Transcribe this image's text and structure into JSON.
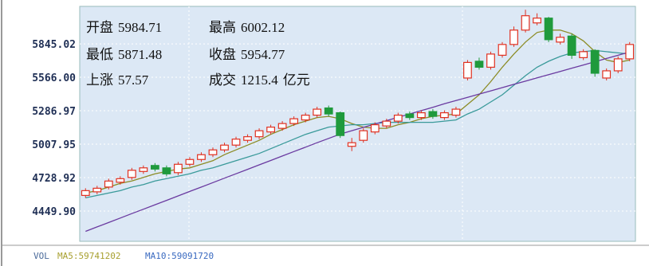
{
  "chart_data": {
    "type": "candlestick",
    "ylim": [
      4197,
      6158
    ],
    "yticks": [
      {
        "value": 4449.9,
        "label": "4449.90"
      },
      4728.92,
      5007.95,
      5286.97,
      {
        "value": 5566,
        "label": "5566.00"
      },
      5845.02
    ],
    "grid": true,
    "up_color": "#e03020",
    "down_color": "#1f9a3c",
    "candles": {
      "open": [
        4580,
        4610,
        4650,
        4690,
        4730,
        4780,
        4830,
        4810,
        4770,
        4840,
        4880,
        4920,
        4960,
        5000,
        5040,
        5070,
        5110,
        5140,
        5180,
        5210,
        5250,
        5310,
        5270,
        4990,
        5040,
        5110,
        5160,
        5200,
        5260,
        5230,
        5280,
        5230,
        5250,
        5560,
        5700,
        5650,
        5750,
        5840,
        5960,
        6020,
        6060,
        5860,
        5910,
        5730,
        5790,
        5560,
        5620,
        5720
      ],
      "high": [
        4640,
        4660,
        4720,
        4740,
        4810,
        4830,
        4850,
        4830,
        4860,
        4900,
        4940,
        4980,
        5020,
        5070,
        5090,
        5140,
        5170,
        5200,
        5240,
        5270,
        5320,
        5330,
        5280,
        5060,
        5140,
        5190,
        5220,
        5270,
        5280,
        5290,
        5300,
        5290,
        5320,
        5710,
        5730,
        5780,
        5860,
        5990,
        6130,
        6100,
        6070,
        5930,
        5930,
        5800,
        5800,
        5640,
        5740,
        5860
      ],
      "low": [
        4560,
        4590,
        4630,
        4670,
        4710,
        4760,
        4780,
        4740,
        4750,
        4820,
        4860,
        4900,
        4940,
        4980,
        5020,
        5050,
        5090,
        5120,
        5160,
        5190,
        5230,
        5240,
        5060,
        4950,
        5020,
        5090,
        5140,
        5180,
        5210,
        5210,
        5220,
        5210,
        5230,
        5540,
        5630,
        5630,
        5730,
        5820,
        5940,
        6000,
        5860,
        5840,
        5720,
        5710,
        5570,
        5540,
        5600,
        5700
      ],
      "close": [
        4620,
        4640,
        4700,
        4720,
        4790,
        4810,
        4800,
        4760,
        4840,
        4880,
        4920,
        4960,
        5000,
        5050,
        5070,
        5120,
        5150,
        5180,
        5220,
        5250,
        5300,
        5260,
        5080,
        5020,
        5120,
        5170,
        5200,
        5250,
        5230,
        5270,
        5240,
        5270,
        5300,
        5690,
        5650,
        5760,
        5840,
        5960,
        6080,
        6060,
        5880,
        5900,
        5750,
        5780,
        5600,
        5620,
        5720,
        5840
      ]
    },
    "series": [
      {
        "color": "#8c8c26",
        "values": [
          4600,
          4620,
          4650,
          4680,
          4700,
          4730,
          4760,
          4780,
          4800,
          4810,
          4840,
          4870,
          4920,
          4960,
          5000,
          5040,
          5090,
          5130,
          5170,
          5200,
          5230,
          5240,
          5220,
          5180,
          5150,
          5140,
          5140,
          5170,
          5190,
          5220,
          5240,
          5250,
          5260,
          5340,
          5420,
          5530,
          5650,
          5760,
          5860,
          5940,
          5960,
          5960,
          5930,
          5870,
          5780,
          5710,
          5690,
          5710
        ]
      },
      {
        "color": "#3a9a9a",
        "values": [
          4560,
          4580,
          4600,
          4620,
          4650,
          4670,
          4700,
          4720,
          4740,
          4760,
          4790,
          4810,
          4840,
          4870,
          4900,
          4930,
          4970,
          5010,
          5050,
          5090,
          5120,
          5150,
          5160,
          5170,
          5170,
          5180,
          5190,
          5190,
          5190,
          5190,
          5190,
          5200,
          5210,
          5260,
          5300,
          5360,
          5420,
          5500,
          5580,
          5650,
          5700,
          5740,
          5770,
          5780,
          5790,
          5780,
          5770,
          5760
        ]
      },
      {
        "color": "#6a3aa0",
        "values": [
          4280,
          4317,
          4354,
          4391,
          4428,
          4465,
          4502,
          4539,
          4576,
          4613,
          4650,
          4687,
          4724,
          4761,
          4798,
          4835,
          4872,
          4909,
          4946,
          4983,
          5020,
          5056,
          5092,
          5120,
          5148,
          5176,
          5204,
          5232,
          5260,
          5288,
          5316,
          5345,
          5372,
          5399,
          5426,
          5453,
          5480,
          5507,
          5534,
          5561,
          5588,
          5615,
          5642,
          5669,
          5696,
          5723,
          5750,
          5777
        ]
      }
    ],
    "info": [
      {
        "label": "开盘",
        "value": 5984.71
      },
      {
        "label": "最高",
        "value": 6002.12
      },
      {
        "label": "最低",
        "value": 5871.48
      },
      {
        "label": "收盘",
        "value": 5954.77
      },
      {
        "label": "上涨",
        "value": 57.57
      },
      {
        "label": "成交",
        "value": 1215.4,
        "unit": "亿元"
      }
    ],
    "footer": [
      "VOL",
      "MA5:59741202",
      "MA10:59091720"
    ]
  }
}
